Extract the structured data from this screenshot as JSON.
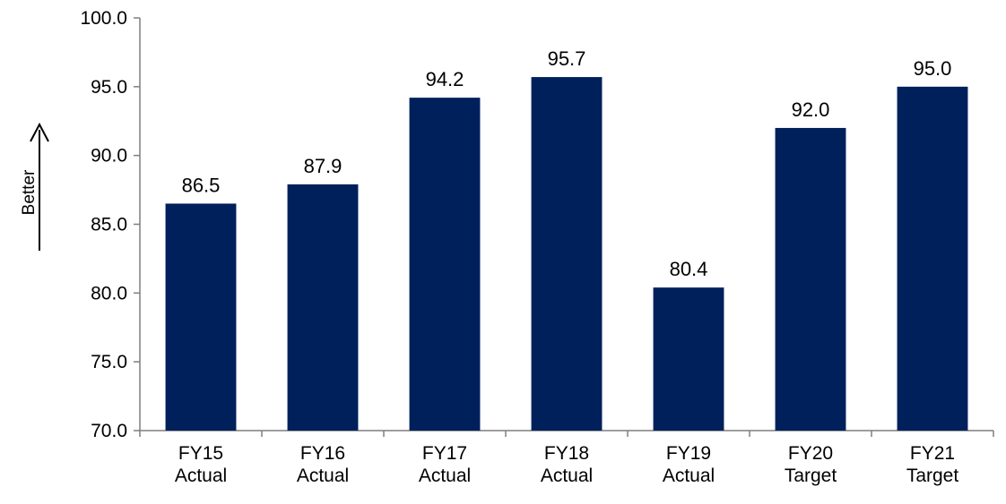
{
  "chart_data": {
    "type": "bar",
    "title": "",
    "xlabel": "",
    "ylabel": "Better",
    "ylim": [
      70.0,
      100.0
    ],
    "yticks": [
      "70.0",
      "75.0",
      "80.0",
      "85.0",
      "90.0",
      "95.0",
      "100.0"
    ],
    "grid": false,
    "categories": [
      [
        "FY15",
        "Actual"
      ],
      [
        "FY16",
        "Actual"
      ],
      [
        "FY17",
        "Actual"
      ],
      [
        "FY18",
        "Actual"
      ],
      [
        "FY19",
        "Actual"
      ],
      [
        "FY20",
        "Target"
      ],
      [
        "FY21",
        "Target"
      ]
    ],
    "values": [
      86.5,
      87.9,
      94.2,
      95.7,
      80.4,
      92.0,
      95.0
    ],
    "data_labels": [
      "86.5",
      "87.9",
      "94.2",
      "95.7",
      "80.4",
      "92.0",
      "95.0"
    ],
    "bar_color": "#00205B",
    "axis_color": "#7F7F7F"
  }
}
